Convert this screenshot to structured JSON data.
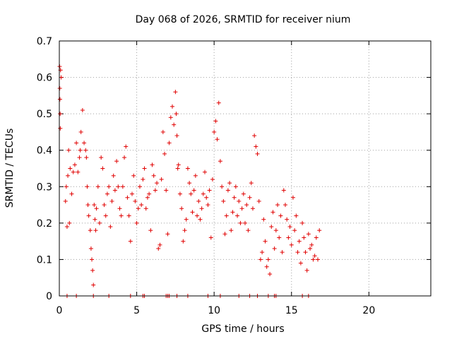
{
  "chart_data": {
    "type": "scatter",
    "title": "Day 068 of 2026, SRMTID for receiver nium",
    "xlabel": "GPS time / hours",
    "ylabel": "SRMTID / TECUs",
    "xlim": [
      0,
      24
    ],
    "ylim": [
      0,
      0.7
    ],
    "xticks": [
      0,
      5,
      10,
      15,
      20
    ],
    "xtick_labels": [
      "0",
      "5",
      "10",
      "15",
      "20"
    ],
    "yticks": [
      0,
      0.1,
      0.2,
      0.3,
      0.4,
      0.5,
      0.6,
      0.7
    ],
    "ytick_labels": [
      "0",
      "0.1",
      "0.2",
      "0.3",
      "0.4",
      "0.5",
      "0.6",
      "0.7"
    ],
    "grid": true,
    "marker": "+",
    "color": "#e00000",
    "series": [
      {
        "name": "SRMTID",
        "x": [
          0.02,
          0.03,
          0.04,
          0.05,
          0.06,
          0.08,
          0.12,
          0.4,
          0.45,
          0.5,
          0.55,
          0.6,
          0.65,
          0.7,
          0.8,
          0.9,
          1.0,
          1.1,
          1.2,
          1.3,
          1.35,
          1.4,
          1.5,
          1.6,
          1.7,
          1.75,
          1.8,
          1.85,
          1.9,
          2.0,
          2.05,
          2.1,
          2.15,
          2.2,
          2.25,
          2.3,
          2.35,
          2.4,
          2.5,
          2.6,
          2.7,
          2.8,
          2.9,
          3.0,
          3.1,
          3.2,
          3.3,
          3.4,
          3.5,
          3.6,
          3.7,
          3.8,
          3.9,
          4.0,
          4.1,
          4.2,
          4.3,
          4.4,
          4.5,
          4.6,
          4.7,
          4.8,
          4.9,
          5.0,
          5.1,
          5.2,
          5.3,
          5.4,
          5.5,
          5.6,
          5.7,
          5.8,
          5.9,
          6.0,
          6.1,
          6.2,
          6.3,
          6.4,
          6.5,
          6.6,
          6.7,
          6.8,
          6.9,
          7.0,
          7.1,
          7.2,
          7.3,
          7.4,
          7.5,
          7.55,
          7.6,
          7.65,
          7.7,
          7.8,
          7.9,
          8.0,
          8.1,
          8.2,
          8.3,
          8.4,
          8.5,
          8.6,
          8.7,
          8.8,
          8.9,
          9.0,
          9.1,
          9.2,
          9.3,
          9.4,
          9.5,
          9.6,
          9.7,
          9.8,
          9.9,
          10.0,
          10.1,
          10.2,
          10.3,
          10.4,
          10.5,
          10.6,
          10.7,
          10.8,
          10.9,
          11.0,
          11.1,
          11.2,
          11.3,
          11.4,
          11.5,
          11.6,
          11.7,
          11.8,
          11.9,
          12.0,
          12.1,
          12.2,
          12.3,
          12.4,
          12.5,
          12.6,
          12.7,
          12.8,
          12.9,
          13.0,
          13.1,
          13.2,
          13.3,
          13.4,
          13.5,
          13.6,
          13.7,
          13.8,
          13.9,
          14.0,
          14.1,
          14.2,
          14.3,
          14.4,
          14.5,
          14.6,
          14.7,
          14.8,
          14.9,
          15.0,
          15.1,
          15.2,
          15.3,
          15.4,
          15.5,
          15.6,
          15.7,
          15.8,
          15.9,
          16.0,
          16.1,
          16.2,
          16.3,
          16.4,
          16.5,
          16.6,
          16.7,
          16.8
        ],
        "y": [
          0.63,
          0.57,
          0.54,
          0.5,
          0.46,
          0.62,
          0.6,
          0.26,
          0.3,
          0.19,
          0.33,
          0.4,
          0.2,
          0.35,
          0.28,
          0.34,
          0.36,
          0.42,
          0.34,
          0.38,
          0.4,
          0.45,
          0.51,
          0.42,
          0.4,
          0.38,
          0.3,
          0.25,
          0.22,
          0.18,
          0.13,
          0.1,
          0.07,
          0.03,
          0.25,
          0.21,
          0.18,
          0.24,
          0.3,
          0.2,
          0.38,
          0.35,
          0.25,
          0.22,
          0.28,
          0.3,
          0.19,
          0.26,
          0.33,
          0.29,
          0.37,
          0.3,
          0.24,
          0.22,
          0.3,
          0.38,
          0.41,
          0.27,
          0.22,
          0.15,
          0.28,
          0.33,
          0.26,
          0.2,
          0.24,
          0.3,
          0.25,
          0.32,
          0.35,
          0.24,
          0.27,
          0.28,
          0.18,
          0.36,
          0.33,
          0.29,
          0.31,
          0.13,
          0.14,
          0.32,
          0.45,
          0.39,
          0.29,
          0.17,
          0.42,
          0.49,
          0.52,
          0.47,
          0.56,
          0.5,
          0.44,
          0.35,
          0.36,
          0.28,
          0.24,
          0.15,
          0.18,
          0.21,
          0.35,
          0.31,
          0.28,
          0.23,
          0.29,
          0.33,
          0.22,
          0.26,
          0.21,
          0.24,
          0.28,
          0.34,
          0.27,
          0.25,
          0.29,
          0.16,
          0.32,
          0.45,
          0.48,
          0.43,
          0.53,
          0.37,
          0.3,
          0.26,
          0.17,
          0.22,
          0.29,
          0.31,
          0.18,
          0.23,
          0.27,
          0.3,
          0.22,
          0.26,
          0.2,
          0.24,
          0.28,
          0.2,
          0.25,
          0.18,
          0.27,
          0.31,
          0.24,
          0.44,
          0.41,
          0.39,
          0.26,
          0.1,
          0.12,
          0.21,
          0.15,
          0.08,
          0.1,
          0.06,
          0.19,
          0.23,
          0.13,
          0.18,
          0.25,
          0.16,
          0.22,
          0.12,
          0.29,
          0.25,
          0.21,
          0.16,
          0.19,
          0.14,
          0.27,
          0.18,
          0.22,
          0.12,
          0.15,
          0.09,
          0.2,
          0.16,
          0.12,
          0.07,
          0.17,
          0.13,
          0.14,
          0.1,
          0.11,
          0.16,
          0.1,
          0.18
        ]
      }
    ],
    "x_axis_marks": [
      0.5,
      1.1,
      2.2,
      3.2,
      4.6,
      5.4,
      5.5,
      6.9,
      7.0,
      7.1,
      7.6,
      8.3,
      9.6,
      10.4,
      11.6,
      12.3,
      12.8,
      13.5,
      13.9,
      14.0,
      15.7,
      16.1
    ]
  }
}
